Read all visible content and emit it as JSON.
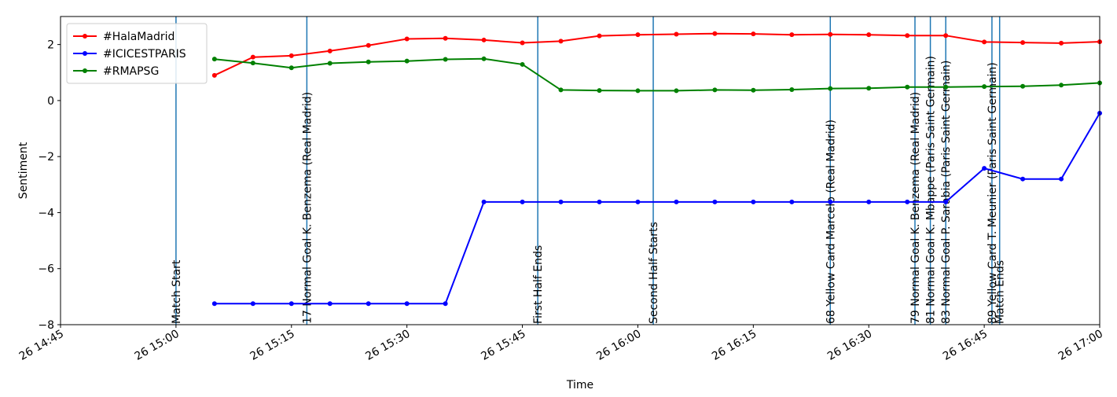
{
  "chart_data": {
    "type": "line",
    "xlabel": "Time",
    "ylabel": "Sentiment",
    "xlim": [
      "26 14:45",
      "26 17:00"
    ],
    "ylim": [
      -8,
      3
    ],
    "x_ticks": [
      "26 14:45",
      "26 15:00",
      "26 15:15",
      "26 15:30",
      "26 15:45",
      "26 16:00",
      "26 16:15",
      "26 16:30",
      "26 16:45",
      "26 17:00"
    ],
    "y_ticks": [
      -8,
      -6,
      -4,
      -2,
      0,
      2
    ],
    "grid": false,
    "legend_position": "top-left",
    "x": [
      "26 15:05",
      "26 15:10",
      "26 15:15",
      "26 15:20",
      "26 15:25",
      "26 15:30",
      "26 15:35",
      "26 15:40",
      "26 15:45",
      "26 15:50",
      "26 15:55",
      "26 16:00",
      "26 16:05",
      "26 16:10",
      "26 16:15",
      "26 16:20",
      "26 16:25",
      "26 16:30",
      "26 16:35",
      "26 16:40",
      "26 16:45",
      "26 16:50",
      "26 16:55",
      "26 17:00"
    ],
    "series": [
      {
        "name": "#HalaMadrid",
        "color": "#ff0000",
        "values": [
          0.9,
          1.55,
          1.6,
          1.77,
          1.97,
          2.2,
          2.22,
          2.16,
          2.06,
          2.12,
          2.31,
          2.35,
          2.37,
          2.39,
          2.38,
          2.35,
          2.36,
          2.35,
          2.32,
          2.32,
          2.09,
          2.07,
          2.05,
          2.1
        ]
      },
      {
        "name": "#ICICESTPARIS",
        "color": "#0000ff",
        "values": [
          -7.25,
          -7.25,
          -7.25,
          -7.25,
          -7.25,
          -7.25,
          -7.25,
          -3.62,
          -3.62,
          -3.62,
          -3.62,
          -3.62,
          -3.62,
          -3.62,
          -3.62,
          -3.62,
          -3.62,
          -3.62,
          -3.62,
          -3.62,
          -2.42,
          -2.8,
          -2.8,
          -0.45
        ]
      },
      {
        "name": "#RMAPSG",
        "color": "#008000",
        "values": [
          1.48,
          1.34,
          1.17,
          1.33,
          1.38,
          1.41,
          1.47,
          1.49,
          1.29,
          0.38,
          0.36,
          0.35,
          0.35,
          0.38,
          0.37,
          0.39,
          0.43,
          0.44,
          0.48,
          0.48,
          0.5,
          0.51,
          0.55,
          0.63
        ]
      }
    ],
    "events": [
      {
        "time": "26 15:00",
        "label": "Match Start"
      },
      {
        "time": "26 15:17",
        "label": "17 Normal Goal K. Benzema (Real Madrid)"
      },
      {
        "time": "26 15:47",
        "label": "First Half Ends"
      },
      {
        "time": "26 16:02",
        "label": "Second Half Starts"
      },
      {
        "time": "26 16:25",
        "label": "68 Yellow Card Marcelo (Real Madrid)"
      },
      {
        "time": "26 16:36",
        "label": "79 Normal Goal K. Benzema (Real Madrid)"
      },
      {
        "time": "26 16:38",
        "label": "81 Normal Goal K. Mbappe (Paris Saint Germain)"
      },
      {
        "time": "26 16:40",
        "label": "83 Normal Goal P. Sarabia (Paris Saint Germain)"
      },
      {
        "time": "26 16:46",
        "label": "89 Yellow Card T. Meunier (Paris Saint Germain)"
      },
      {
        "time": "26 16:47",
        "label": "Match Ends"
      }
    ]
  }
}
